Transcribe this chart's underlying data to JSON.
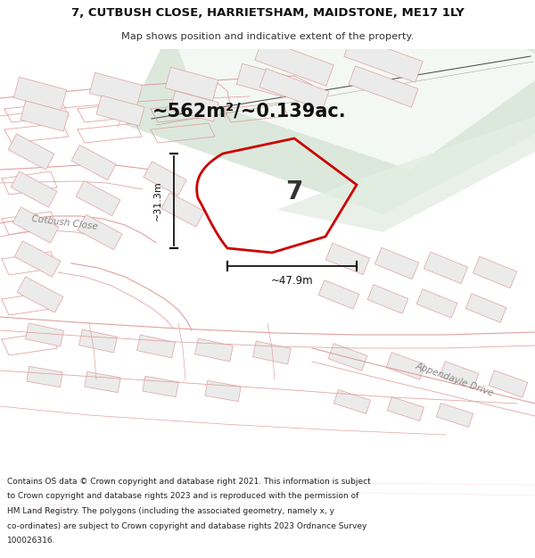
{
  "title_line1": "7, CUTBUSH CLOSE, HARRIETSHAM, MAIDSTONE, ME17 1LY",
  "title_line2": "Map shows position and indicative extent of the property.",
  "area_text": "~562m²/~0.139ac.",
  "dim_width": "~47.9m",
  "dim_height": "~31.3m",
  "plot_number": "7",
  "road_label1": "Cutbush Close",
  "road_label2": "Appendayle Drive",
  "bg_color": "#f7f7f5",
  "map_bg": "#ffffff",
  "road_green": "#dce8dc",
  "road_green2": "#e4eee4",
  "plot_fill": "none",
  "plot_edge": "#cc0000",
  "building_fill": "#ebebeb",
  "building_stroke": "#e0a0a0",
  "road_stroke": "#e0a0a0",
  "title_bg": "#ffffff",
  "footer_bg": "#ffffff",
  "railway_color": "#555555",
  "footer_lines": [
    "Contains OS data © Crown copyright and database right 2021. This information is subject",
    "to Crown copyright and database rights 2023 and is reproduced with the permission of",
    "HM Land Registry. The polygons (including the associated geometry, namely x, y",
    "co-ordinates) are subject to Crown copyright and database rights 2023 Ordnance Survey",
    "100026316."
  ]
}
